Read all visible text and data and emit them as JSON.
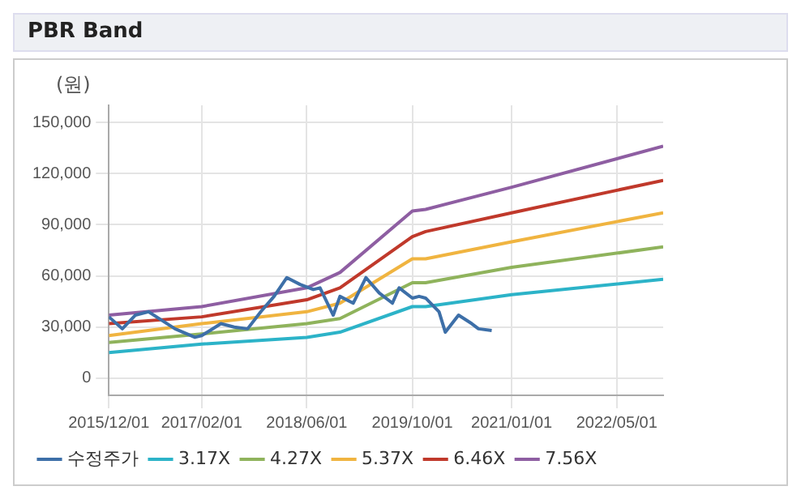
{
  "chart_data": {
    "type": "line",
    "title": "PBR Band",
    "ylabel": "(원)",
    "x": [
      "2015-12",
      "2017-02",
      "2018-06",
      "2018-11",
      "2019-10",
      "2019-12",
      "2021-01",
      "2022-12"
    ],
    "xlim": [
      "2015-12",
      "2022-12"
    ],
    "xticks": [
      {
        "value": "2015-12-01",
        "label": "2015/12/01"
      },
      {
        "value": "2017-02-01",
        "label": "2017/02/01"
      },
      {
        "value": "2018-06-01",
        "label": "2018/06/01"
      },
      {
        "value": "2019-10-01",
        "label": "2019/10/01"
      },
      {
        "value": "2021-01-01",
        "label": "2021/01/01"
      },
      {
        "value": "2022-05-01",
        "label": "2022/05/01"
      }
    ],
    "ylim": [
      -10000,
      160000
    ],
    "yticks": [
      0,
      {
        "value": 30000,
        "label": "30,000"
      },
      {
        "value": 60000,
        "label": "60,000"
      },
      {
        "value": 90000,
        "label": "90,000"
      },
      {
        "value": 120000,
        "label": "120,000"
      },
      {
        "value": 150000,
        "label": "150,000"
      }
    ],
    "grid": true,
    "legend": "bottom",
    "marker": "none",
    "line_style": "solid",
    "series": [
      {
        "name": "수정주가",
        "color": "#3d6fa8",
        "x": [
          "2015-12",
          "2016-02",
          "2016-04",
          "2016-06",
          "2016-08",
          "2016-10",
          "2017-01",
          "2017-02",
          "2017-05",
          "2017-07",
          "2017-09",
          "2017-11",
          "2018-01",
          "2018-03",
          "2018-05",
          "2018-07",
          "2018-08",
          "2018-10",
          "2018-11",
          "2019-01",
          "2019-03",
          "2019-05",
          "2019-07",
          "2019-08",
          "2019-10",
          "2019-11",
          "2019-12",
          "2020-02",
          "2020-03",
          "2020-05",
          "2020-07",
          "2020-08",
          "2020-10"
        ],
        "values": [
          36000,
          29000,
          37000,
          39000,
          34000,
          29000,
          24000,
          25000,
          32000,
          30000,
          29000,
          39000,
          48000,
          59000,
          55000,
          52000,
          53000,
          37000,
          48000,
          44000,
          59000,
          50000,
          44000,
          53000,
          47000,
          48000,
          47000,
          39000,
          27000,
          37000,
          32000,
          29000,
          28000
        ]
      },
      {
        "name": "3.17X",
        "color": "#2cb3c8",
        "values": [
          15000,
          20000,
          24000,
          27000,
          42000,
          42000,
          49000,
          58000
        ]
      },
      {
        "name": "4.27X",
        "color": "#8fb35c",
        "values": [
          21000,
          26000,
          32000,
          35000,
          56000,
          56000,
          65000,
          77000
        ]
      },
      {
        "name": "5.37X",
        "color": "#f0b440",
        "values": [
          25000,
          32000,
          39000,
          44000,
          70000,
          70000,
          80000,
          97000
        ]
      },
      {
        "name": "6.46X",
        "color": "#c0392b",
        "values": [
          32000,
          36000,
          46000,
          53000,
          83000,
          86000,
          97000,
          116000
        ]
      },
      {
        "name": "7.56X",
        "color": "#8e5ea2",
        "values": [
          37000,
          42000,
          53000,
          62000,
          98000,
          99000,
          112000,
          136000
        ]
      }
    ]
  }
}
